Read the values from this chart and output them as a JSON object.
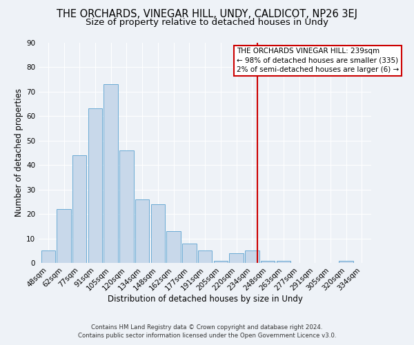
{
  "title": "THE ORCHARDS, VINEGAR HILL, UNDY, CALDICOT, NP26 3EJ",
  "subtitle": "Size of property relative to detached houses in Undy",
  "xlabel": "Distribution of detached houses by size in Undy",
  "ylabel": "Number of detached properties",
  "bar_color": "#c8d8ea",
  "bar_edge_color": "#6aaad4",
  "categories": [
    "48sqm",
    "62sqm",
    "77sqm",
    "91sqm",
    "105sqm",
    "120sqm",
    "134sqm",
    "148sqm",
    "162sqm",
    "177sqm",
    "191sqm",
    "205sqm",
    "220sqm",
    "234sqm",
    "248sqm",
    "263sqm",
    "277sqm",
    "291sqm",
    "305sqm",
    "320sqm",
    "334sqm"
  ],
  "values": [
    5,
    22,
    44,
    63,
    73,
    46,
    26,
    24,
    13,
    8,
    5,
    1,
    4,
    5,
    1,
    1,
    0,
    0,
    0,
    1,
    0
  ],
  "ylim": [
    0,
    90
  ],
  "yticks": [
    0,
    10,
    20,
    30,
    40,
    50,
    60,
    70,
    80,
    90
  ],
  "marker_label_line1": "THE ORCHARDS VINEGAR HILL: 239sqm",
  "marker_label_line2": "← 98% of detached houses are smaller (335)",
  "marker_label_line3": "2% of semi-detached houses are larger (6) →",
  "marker_color": "#cc0000",
  "bg_color": "#eef2f7",
  "grid_color": "#ffffff",
  "footer_line1": "Contains HM Land Registry data © Crown copyright and database right 2024.",
  "footer_line2": "Contains public sector information licensed under the Open Government Licence v3.0.",
  "title_fontsize": 10.5,
  "subtitle_fontsize": 9.5,
  "axis_label_fontsize": 8.5,
  "tick_fontsize": 7.5,
  "annotation_fontsize": 7.5
}
